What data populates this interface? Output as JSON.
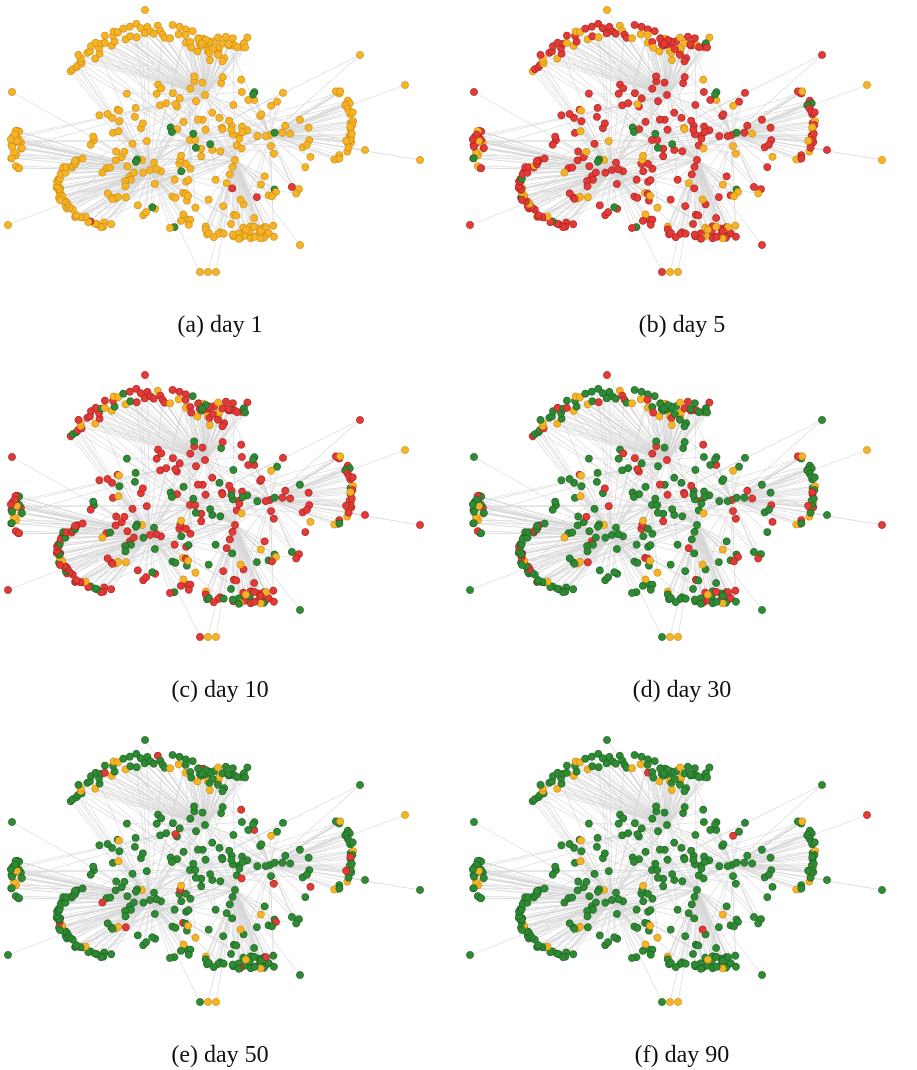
{
  "colors": {
    "susceptible": "#f5b325",
    "infected": "#e23a36",
    "recovered": "#2e8b33",
    "edge": "#d6d6d6"
  },
  "panels": [
    {
      "id": "a",
      "caption": "(a) day 1",
      "mix": [
        0.985,
        0.015,
        0.0
      ]
    },
    {
      "id": "b",
      "caption": "(b) day 5",
      "mix": [
        0.25,
        0.68,
        0.07
      ]
    },
    {
      "id": "c",
      "caption": "(c) day 10",
      "mix": [
        0.12,
        0.62,
        0.26
      ]
    },
    {
      "id": "d",
      "caption": "(d) day 30",
      "mix": [
        0.1,
        0.25,
        0.65
      ]
    },
    {
      "id": "e",
      "caption": "(e) day 50",
      "mix": [
        0.09,
        0.05,
        0.86
      ]
    },
    {
      "id": "f",
      "caption": "(f) day 90",
      "mix": [
        0.08,
        0.01,
        0.91
      ]
    }
  ]
}
